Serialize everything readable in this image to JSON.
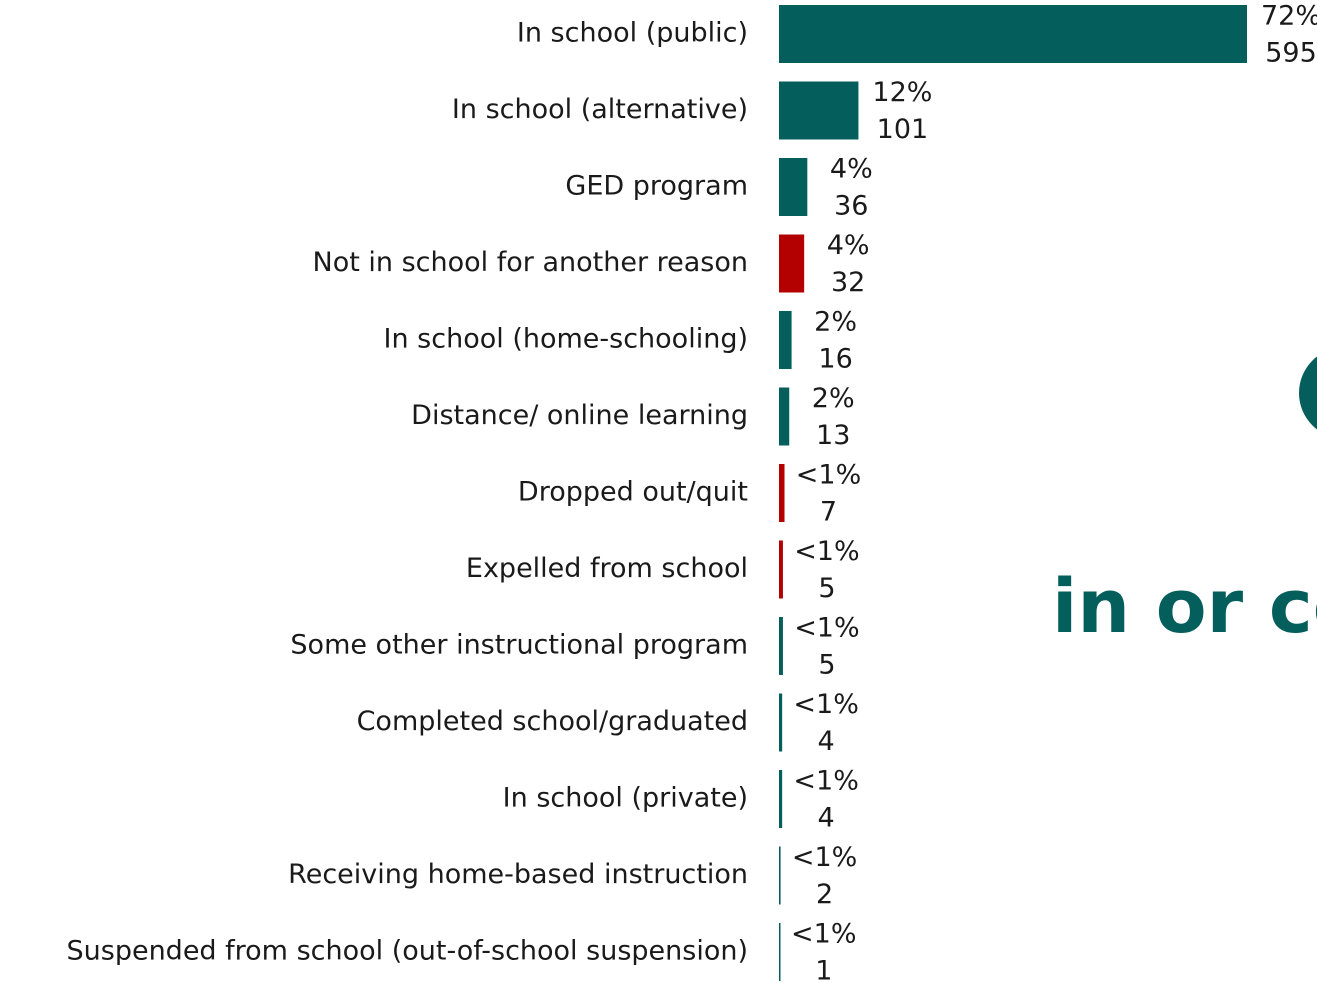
{
  "chart_data": {
    "type": "bar",
    "orientation": "horizontal",
    "categories": [
      "In school (public)",
      "In school (alternative)",
      "GED program",
      "Not in school for another reason",
      "In school (home-schooling)",
      "Distance/ online learning",
      "Dropped out/quit",
      "Expelled from school",
      "Some other instructional program",
      "Completed school/graduated",
      "In school (private)",
      "Receiving home-based instruction",
      "Suspended from school (out-of-school suspension)"
    ],
    "values": [
      595,
      101,
      36,
      32,
      16,
      13,
      7,
      5,
      5,
      4,
      4,
      2,
      1
    ],
    "percent_labels": [
      "72%",
      "12%",
      "4%",
      "4%",
      "2%",
      "2%",
      "<1%",
      "<1%",
      "<1%",
      "<1%",
      "<1%",
      "<1%",
      "<1%"
    ],
    "colors": [
      "#045e5b",
      "#045e5b",
      "#045e5b",
      "#b30000",
      "#045e5b",
      "#045e5b",
      "#b30000",
      "#b30000",
      "#045e5b",
      "#045e5b",
      "#045e5b",
      "#045e5b",
      "#045e5b"
    ],
    "annotation": "in or co"
  }
}
